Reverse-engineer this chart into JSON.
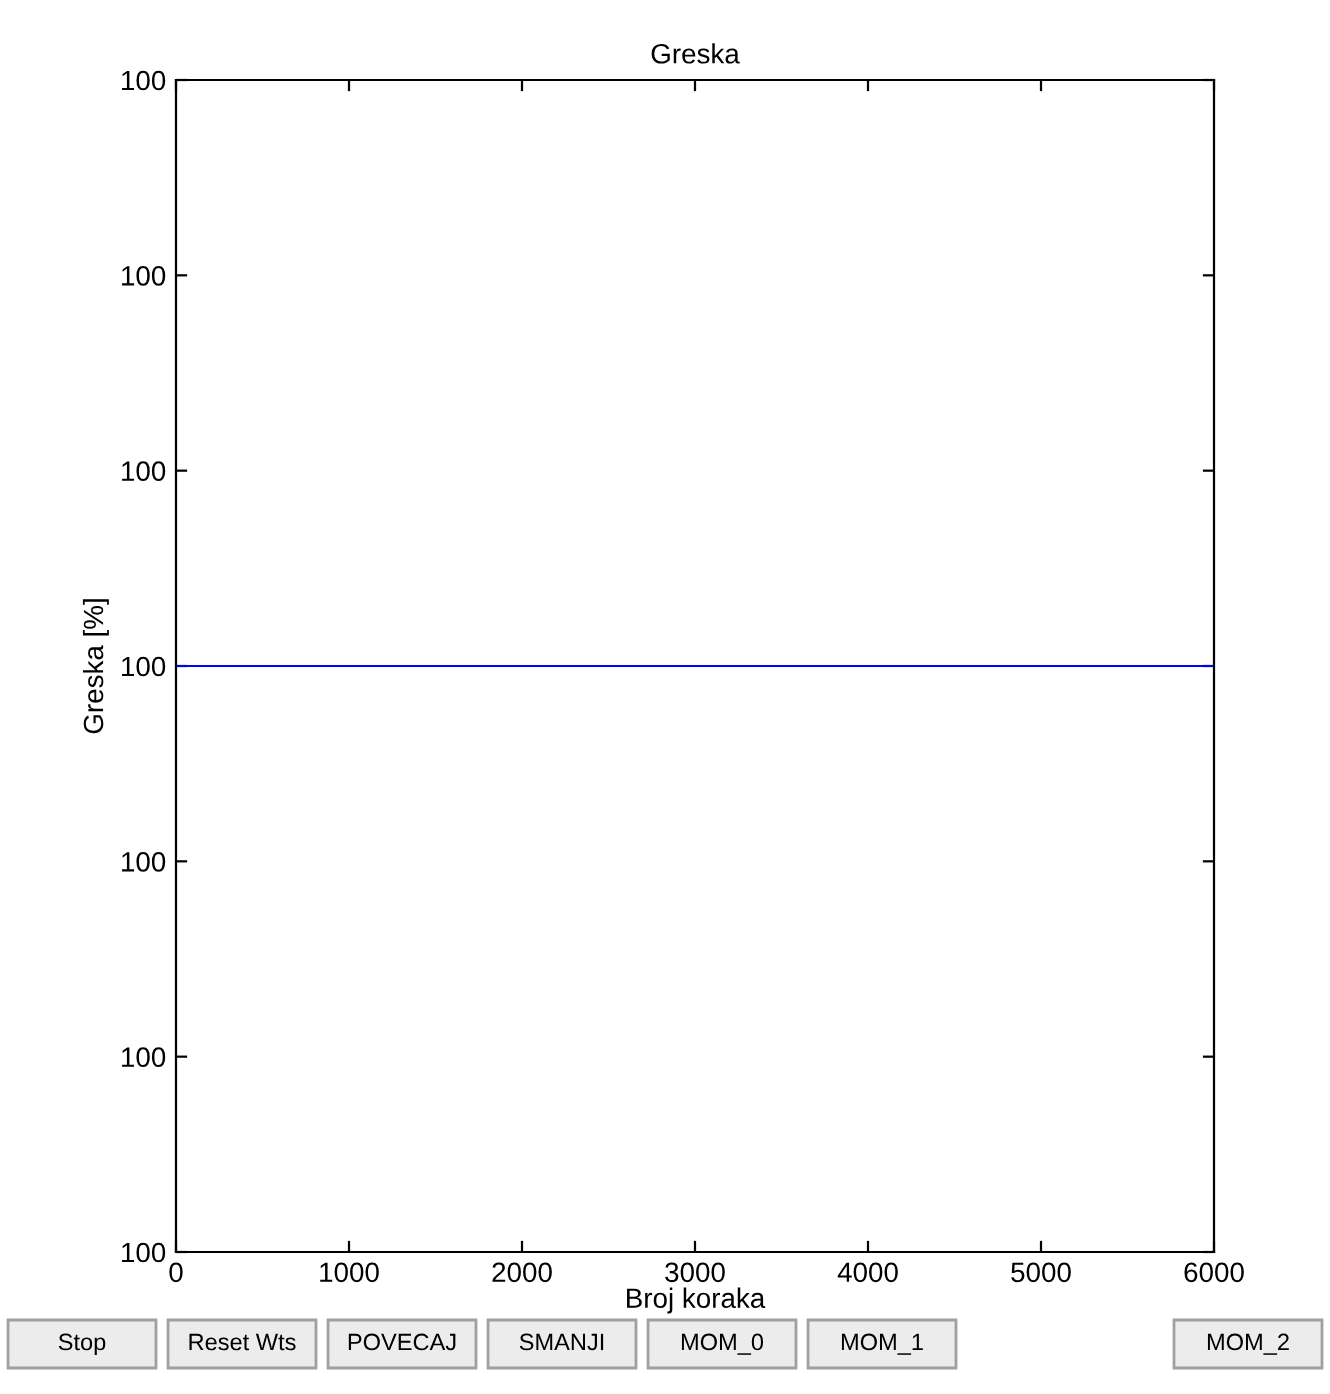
{
  "chart_data": {
    "type": "line",
    "title": "Greska",
    "xlabel": "Broj koraka",
    "ylabel": "Greska [%]",
    "x": [
      0,
      6000
    ],
    "series": [
      {
        "color": "#0000ff",
        "values": [
          100,
          100
        ]
      }
    ],
    "xlim": [
      0,
      6000
    ],
    "xticks": [
      0,
      1000,
      2000,
      3000,
      4000,
      5000,
      6000
    ],
    "ylim": [
      99.97,
      100.03
    ],
    "yticks": [
      {
        "value": 99.97,
        "label": "100"
      },
      {
        "value": 99.98,
        "label": "100"
      },
      {
        "value": 99.99,
        "label": "100"
      },
      100,
      {
        "value": 100.01,
        "label": "100"
      },
      {
        "value": 100.02,
        "label": "100"
      },
      {
        "value": 100.03,
        "label": "100"
      }
    ],
    "grid": false,
    "marker": "none",
    "line_style": "solid",
    "annotations": [
      "Stop",
      "Reset Wts",
      "POVECAJ",
      "SMANJI",
      "MOM_0",
      "MOM_1",
      "MOM_2"
    ]
  }
}
